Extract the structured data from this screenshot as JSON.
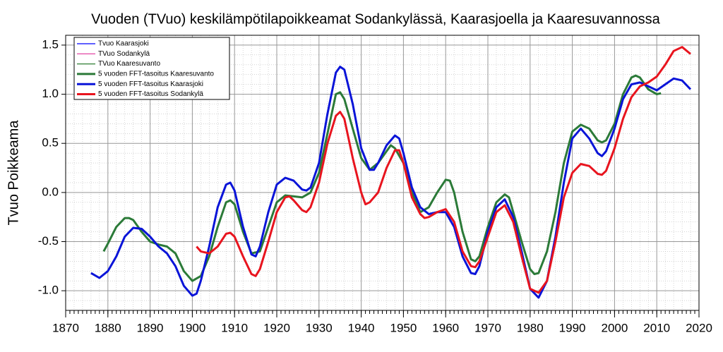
{
  "chart_data": {
    "type": "line",
    "title": "Vuoden (TVuo) keskilämpötilapoikkeamat Sodankylässä, Kaarasjoella ja Kaaresuvannossa",
    "y_label": "Tvuo Poikkeama",
    "xlim": [
      1870,
      2020
    ],
    "ylim": [
      -1.2,
      1.6
    ],
    "xticks": [
      1870,
      1880,
      1890,
      1900,
      1910,
      1920,
      1930,
      1940,
      1950,
      1960,
      1970,
      1980,
      1990,
      2000,
      2010,
      2020
    ],
    "yticks": [
      {
        "value": -1.0,
        "label": "-1.0"
      },
      -0.5,
      {
        "value": 0.0,
        "label": "0.0"
      },
      0.5,
      {
        "value": 1.0,
        "label": "1.0"
      },
      1.5
    ],
    "grid": true,
    "minor_grid": {
      "x_step": 2,
      "y_step": 0.1
    },
    "legend_position": "upper left",
    "legend_thin": [
      {
        "name": "Tvuo Kaarasjoki",
        "color": "#0000ff"
      },
      {
        "name": "TVuo Sodankylä",
        "color": "#e0309a"
      },
      {
        "name": "TVuo Kaaresuvanto",
        "color": "#2e7d32"
      }
    ],
    "series": [
      {
        "name": "5 vuoden FFT-tasoitus Kaaresuvanto",
        "color": "#2b7a38",
        "x": [
          1879,
          1880,
          1882,
          1884,
          1885,
          1886,
          1888,
          1890,
          1892,
          1894,
          1896,
          1898,
          1900,
          1902,
          1904,
          1906,
          1908,
          1909,
          1910,
          1912,
          1914,
          1916,
          1918,
          1920,
          1922,
          1924,
          1926,
          1928,
          1930,
          1932,
          1934,
          1935,
          1936,
          1938,
          1940,
          1942,
          1944,
          1946,
          1947,
          1948,
          1950,
          1952,
          1954,
          1956,
          1958,
          1960,
          1961,
          1962,
          1964,
          1966,
          1967,
          1968,
          1970,
          1972,
          1974,
          1975,
          1976,
          1978,
          1980,
          1981,
          1982,
          1984,
          1986,
          1988,
          1990,
          1992,
          1994,
          1996,
          1997,
          1998,
          2000,
          2002,
          2004,
          2005,
          2006,
          2008,
          2010,
          2011
        ],
        "values": [
          -0.6,
          -0.52,
          -0.35,
          -0.26,
          -0.26,
          -0.28,
          -0.4,
          -0.5,
          -0.53,
          -0.55,
          -0.62,
          -0.8,
          -0.9,
          -0.85,
          -0.65,
          -0.35,
          -0.1,
          -0.08,
          -0.12,
          -0.4,
          -0.62,
          -0.6,
          -0.35,
          -0.1,
          -0.03,
          -0.04,
          -0.05,
          0.0,
          0.2,
          0.6,
          1.0,
          1.02,
          0.95,
          0.65,
          0.35,
          0.23,
          0.3,
          0.42,
          0.48,
          0.45,
          0.3,
          0.0,
          -0.2,
          -0.15,
          0.0,
          0.13,
          0.12,
          0.0,
          -0.4,
          -0.68,
          -0.7,
          -0.65,
          -0.35,
          -0.1,
          -0.02,
          -0.05,
          -0.2,
          -0.5,
          -0.78,
          -0.83,
          -0.82,
          -0.6,
          -0.2,
          0.3,
          0.62,
          0.69,
          0.65,
          0.53,
          0.51,
          0.53,
          0.7,
          1.0,
          1.17,
          1.19,
          1.17,
          1.05,
          1.0,
          1.01
        ]
      },
      {
        "name": "5 vuoden FFT-tasoitus  Kaarasjoki",
        "color": "#0a14d8",
        "x": [
          1876,
          1878,
          1880,
          1882,
          1884,
          1886,
          1888,
          1890,
          1892,
          1894,
          1896,
          1898,
          1900,
          1901,
          1902,
          1904,
          1906,
          1908,
          1909,
          1910,
          1912,
          1914,
          1915,
          1916,
          1918,
          1920,
          1922,
          1924,
          1926,
          1927,
          1928,
          1930,
          1932,
          1934,
          1935,
          1936,
          1938,
          1940,
          1942,
          1943,
          1944,
          1946,
          1948,
          1949,
          1950,
          1952,
          1954,
          1956,
          1958,
          1960,
          1962,
          1964,
          1966,
          1967,
          1968,
          1970,
          1972,
          1974,
          1976,
          1978,
          1980,
          1982,
          1984,
          1986,
          1988,
          1990,
          1992,
          1994,
          1996,
          1997,
          1998,
          2000,
          2002,
          2004,
          2006,
          2008,
          2010,
          2012,
          2014,
          2016,
          2018
        ],
        "values": [
          -0.82,
          -0.87,
          -0.8,
          -0.65,
          -0.45,
          -0.36,
          -0.37,
          -0.45,
          -0.55,
          -0.62,
          -0.75,
          -0.95,
          -1.05,
          -1.03,
          -0.9,
          -0.55,
          -0.15,
          0.08,
          0.1,
          0.02,
          -0.35,
          -0.63,
          -0.65,
          -0.55,
          -0.2,
          0.08,
          0.15,
          0.12,
          0.03,
          0.02,
          0.05,
          0.3,
          0.8,
          1.22,
          1.28,
          1.25,
          0.9,
          0.45,
          0.23,
          0.23,
          0.3,
          0.48,
          0.58,
          0.55,
          0.4,
          0.05,
          -0.15,
          -0.22,
          -0.2,
          -0.2,
          -0.35,
          -0.65,
          -0.82,
          -0.83,
          -0.75,
          -0.4,
          -0.15,
          -0.07,
          -0.25,
          -0.6,
          -0.98,
          -1.07,
          -0.9,
          -0.45,
          0.1,
          0.55,
          0.65,
          0.55,
          0.4,
          0.37,
          0.42,
          0.65,
          0.95,
          1.1,
          1.12,
          1.08,
          1.04,
          1.1,
          1.16,
          1.14,
          1.05
        ]
      },
      {
        "name": "5 vuoden FFT-tasoitus  Sodankylä",
        "color": "#e8141e",
        "x": [
          1901,
          1902,
          1904,
          1906,
          1908,
          1909,
          1910,
          1912,
          1914,
          1915,
          1916,
          1918,
          1920,
          1922,
          1923,
          1924,
          1926,
          1927,
          1928,
          1930,
          1932,
          1934,
          1935,
          1936,
          1938,
          1940,
          1941,
          1942,
          1944,
          1946,
          1948,
          1949,
          1950,
          1952,
          1954,
          1955,
          1956,
          1958,
          1960,
          1962,
          1964,
          1966,
          1967,
          1968,
          1970,
          1972,
          1974,
          1976,
          1978,
          1980,
          1982,
          1984,
          1986,
          1988,
          1990,
          1992,
          1994,
          1996,
          1997,
          1998,
          2000,
          2002,
          2004,
          2006,
          2008,
          2010,
          2012,
          2014,
          2016,
          2018
        ],
        "values": [
          -0.55,
          -0.6,
          -0.62,
          -0.55,
          -0.42,
          -0.41,
          -0.45,
          -0.65,
          -0.83,
          -0.85,
          -0.78,
          -0.5,
          -0.2,
          -0.05,
          -0.04,
          -0.08,
          -0.18,
          -0.2,
          -0.15,
          0.1,
          0.5,
          0.78,
          0.82,
          0.75,
          0.35,
          0.0,
          -0.12,
          -0.1,
          0.0,
          0.25,
          0.43,
          0.43,
          0.3,
          -0.05,
          -0.22,
          -0.26,
          -0.25,
          -0.2,
          -0.17,
          -0.3,
          -0.6,
          -0.75,
          -0.76,
          -0.7,
          -0.45,
          -0.2,
          -0.13,
          -0.3,
          -0.65,
          -0.98,
          -1.02,
          -0.9,
          -0.5,
          -0.05,
          0.2,
          0.29,
          0.27,
          0.19,
          0.18,
          0.22,
          0.45,
          0.75,
          0.97,
          1.08,
          1.12,
          1.18,
          1.3,
          1.44,
          1.48,
          1.41
        ]
      }
    ]
  }
}
